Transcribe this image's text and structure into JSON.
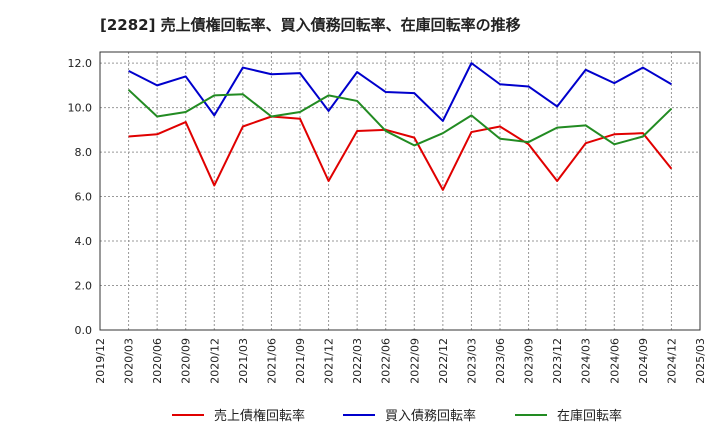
{
  "chart_data": {
    "type": "line",
    "title": "[2282]  売上債権回転率、買入債務回転率、在庫回転率の推移",
    "xlabel": "",
    "ylabel": "",
    "ylim": [
      0,
      12.5
    ],
    "yticks": [
      "0.0",
      "2.0",
      "4.0",
      "6.0",
      "8.0",
      "10.0",
      "12.0"
    ],
    "x": [
      "2019/12",
      "2020/03",
      "2020/06",
      "2020/09",
      "2020/12",
      "2021/03",
      "2021/06",
      "2021/09",
      "2021/12",
      "2022/03",
      "2022/06",
      "2022/09",
      "2022/12",
      "2023/03",
      "2023/06",
      "2023/09",
      "2023/12",
      "2024/03",
      "2024/06",
      "2024/09",
      "2024/12",
      "2025/03"
    ],
    "legend_position": "bottom",
    "grid": true,
    "series": [
      {
        "name": "売上債権回転率",
        "color": "#e00000",
        "values": [
          null,
          8.7,
          8.8,
          9.35,
          6.5,
          9.15,
          9.6,
          9.5,
          6.7,
          8.95,
          9.0,
          8.65,
          6.3,
          8.9,
          9.15,
          8.35,
          6.7,
          8.4,
          8.8,
          8.85,
          7.25,
          null
        ]
      },
      {
        "name": "買入債務回転率",
        "color": "#0000cc",
        "values": [
          null,
          11.65,
          11.0,
          11.4,
          9.65,
          11.8,
          11.5,
          11.55,
          9.85,
          11.6,
          10.7,
          10.65,
          9.4,
          12.0,
          11.05,
          10.95,
          10.05,
          11.7,
          11.1,
          11.8,
          11.05,
          null
        ]
      },
      {
        "name": "在庫回転率",
        "color": "#228b22",
        "values": [
          null,
          10.8,
          9.6,
          9.8,
          10.55,
          10.6,
          9.6,
          9.8,
          10.55,
          10.3,
          8.95,
          8.3,
          8.85,
          9.65,
          8.6,
          8.45,
          9.1,
          9.2,
          8.35,
          8.7,
          9.95,
          null
        ]
      }
    ]
  }
}
